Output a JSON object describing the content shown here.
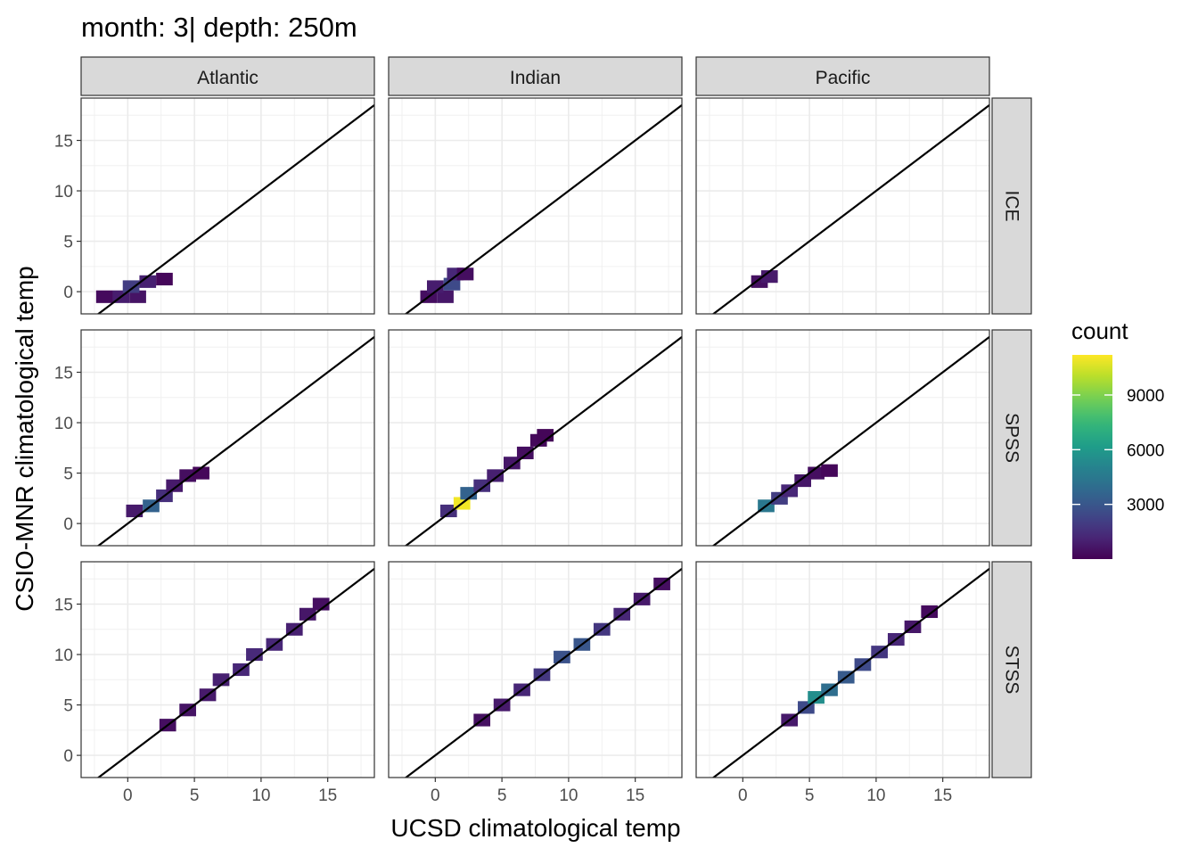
{
  "chart_data": {
    "type": "heatmap",
    "title": "month: 3| depth: 250m",
    "xlabel": "UCSD climatological temp",
    "ylabel": "CSIO-MNR climatological temp",
    "xlim": [
      -3.5,
      18.5
    ],
    "ylim": [
      -2.2,
      19.2
    ],
    "x_ticks": [
      0,
      5,
      10,
      15
    ],
    "y_ticks": [
      0,
      5,
      10,
      15
    ],
    "x_tick_labels": [
      "0",
      "5",
      "10",
      "15"
    ],
    "y_tick_labels": [
      "0",
      "5",
      "10",
      "15"
    ],
    "grid": true,
    "column_facets": [
      "Atlantic",
      "Indian",
      "Pacific"
    ],
    "row_facets": [
      "ICE",
      "SPSS",
      "STSS"
    ],
    "reference_line": {
      "slope": 1,
      "intercept": 0
    },
    "bin_width": 1.25,
    "legend": {
      "title": "count",
      "position": "right",
      "scale": "viridis",
      "breaks": [
        3000,
        6000,
        9000
      ],
      "break_labels": [
        "3000",
        "6000",
        "9000"
      ],
      "range": [
        0,
        11200
      ]
    },
    "panels": [
      {
        "col": "Atlantic",
        "row": "ICE",
        "bins": [
          {
            "x": -1.75,
            "y": -0.5,
            "count": 300
          },
          {
            "x": -0.5,
            "y": -0.5,
            "count": 900
          },
          {
            "x": 0.75,
            "y": -0.5,
            "count": 600
          },
          {
            "x": 0.25,
            "y": 0.5,
            "count": 2000
          },
          {
            "x": 1.5,
            "y": 1.0,
            "count": 1000
          },
          {
            "x": 2.75,
            "y": 1.25,
            "count": 200
          }
        ]
      },
      {
        "col": "Indian",
        "row": "ICE",
        "bins": [
          {
            "x": -0.5,
            "y": -0.5,
            "count": 400
          },
          {
            "x": 0.75,
            "y": -0.5,
            "count": 700
          },
          {
            "x": 0.0,
            "y": 0.5,
            "count": 900
          },
          {
            "x": 1.25,
            "y": 0.75,
            "count": 2500
          },
          {
            "x": 1.5,
            "y": 1.75,
            "count": 1200
          },
          {
            "x": 2.25,
            "y": 1.75,
            "count": 400
          }
        ]
      },
      {
        "col": "Pacific",
        "row": "ICE",
        "bins": [
          {
            "x": 1.25,
            "y": 1.0,
            "count": 500
          },
          {
            "x": 2.0,
            "y": 1.5,
            "count": 800
          }
        ]
      },
      {
        "col": "Atlantic",
        "row": "SPSS",
        "bins": [
          {
            "x": 0.5,
            "y": 1.25,
            "count": 800
          },
          {
            "x": 1.75,
            "y": 1.75,
            "count": 3500
          },
          {
            "x": 2.75,
            "y": 2.75,
            "count": 1500
          },
          {
            "x": 3.5,
            "y": 3.75,
            "count": 800
          },
          {
            "x": 4.5,
            "y": 4.75,
            "count": 400
          },
          {
            "x": 5.5,
            "y": 5.0,
            "count": 200
          }
        ]
      },
      {
        "col": "Indian",
        "row": "SPSS",
        "bins": [
          {
            "x": 1.0,
            "y": 1.25,
            "count": 1500
          },
          {
            "x": 2.0,
            "y": 2.0,
            "count": 11000
          },
          {
            "x": 2.5,
            "y": 3.0,
            "count": 3500
          },
          {
            "x": 3.5,
            "y": 3.75,
            "count": 1500
          },
          {
            "x": 4.5,
            "y": 4.75,
            "count": 1000
          },
          {
            "x": 5.75,
            "y": 6.0,
            "count": 700
          },
          {
            "x": 6.75,
            "y": 7.0,
            "count": 400
          },
          {
            "x": 7.75,
            "y": 8.25,
            "count": 250
          },
          {
            "x": 8.25,
            "y": 8.75,
            "count": 150
          }
        ]
      },
      {
        "col": "Pacific",
        "row": "SPSS",
        "bins": [
          {
            "x": 1.75,
            "y": 1.75,
            "count": 4500
          },
          {
            "x": 2.75,
            "y": 2.5,
            "count": 2000
          },
          {
            "x": 3.5,
            "y": 3.25,
            "count": 1200
          },
          {
            "x": 4.5,
            "y": 4.25,
            "count": 700
          },
          {
            "x": 5.5,
            "y": 5.0,
            "count": 400
          },
          {
            "x": 6.5,
            "y": 5.25,
            "count": 200
          }
        ]
      },
      {
        "col": "Atlantic",
        "row": "STSS",
        "bins": [
          {
            "x": 3.0,
            "y": 3.0,
            "count": 400
          },
          {
            "x": 4.5,
            "y": 4.5,
            "count": 600
          },
          {
            "x": 6.0,
            "y": 6.0,
            "count": 800
          },
          {
            "x": 7.0,
            "y": 7.5,
            "count": 1000
          },
          {
            "x": 8.5,
            "y": 8.5,
            "count": 1200
          },
          {
            "x": 9.5,
            "y": 10.0,
            "count": 1300
          },
          {
            "x": 11.0,
            "y": 11.0,
            "count": 1200
          },
          {
            "x": 12.5,
            "y": 12.5,
            "count": 1000
          },
          {
            "x": 13.5,
            "y": 14.0,
            "count": 700
          },
          {
            "x": 14.5,
            "y": 15.0,
            "count": 400
          }
        ]
      },
      {
        "col": "Indian",
        "row": "STSS",
        "bins": [
          {
            "x": 3.5,
            "y": 3.5,
            "count": 500
          },
          {
            "x": 5.0,
            "y": 5.0,
            "count": 800
          },
          {
            "x": 6.5,
            "y": 6.5,
            "count": 1200
          },
          {
            "x": 8.0,
            "y": 8.0,
            "count": 1800
          },
          {
            "x": 9.5,
            "y": 9.75,
            "count": 2800
          },
          {
            "x": 11.0,
            "y": 11.0,
            "count": 3000
          },
          {
            "x": 12.5,
            "y": 12.5,
            "count": 1800
          },
          {
            "x": 14.0,
            "y": 14.0,
            "count": 1200
          },
          {
            "x": 15.5,
            "y": 15.5,
            "count": 800
          },
          {
            "x": 17.0,
            "y": 17.0,
            "count": 400
          }
        ]
      },
      {
        "col": "Pacific",
        "row": "STSS",
        "bins": [
          {
            "x": 3.5,
            "y": 3.5,
            "count": 800
          },
          {
            "x": 4.75,
            "y": 4.75,
            "count": 2500
          },
          {
            "x": 5.5,
            "y": 5.75,
            "count": 5500
          },
          {
            "x": 6.5,
            "y": 6.5,
            "count": 4000
          },
          {
            "x": 7.75,
            "y": 7.75,
            "count": 3200
          },
          {
            "x": 9.0,
            "y": 9.0,
            "count": 2500
          },
          {
            "x": 10.25,
            "y": 10.25,
            "count": 1800
          },
          {
            "x": 11.5,
            "y": 11.5,
            "count": 1200
          },
          {
            "x": 12.75,
            "y": 12.75,
            "count": 700
          },
          {
            "x": 14.0,
            "y": 14.25,
            "count": 300
          }
        ]
      }
    ]
  }
}
